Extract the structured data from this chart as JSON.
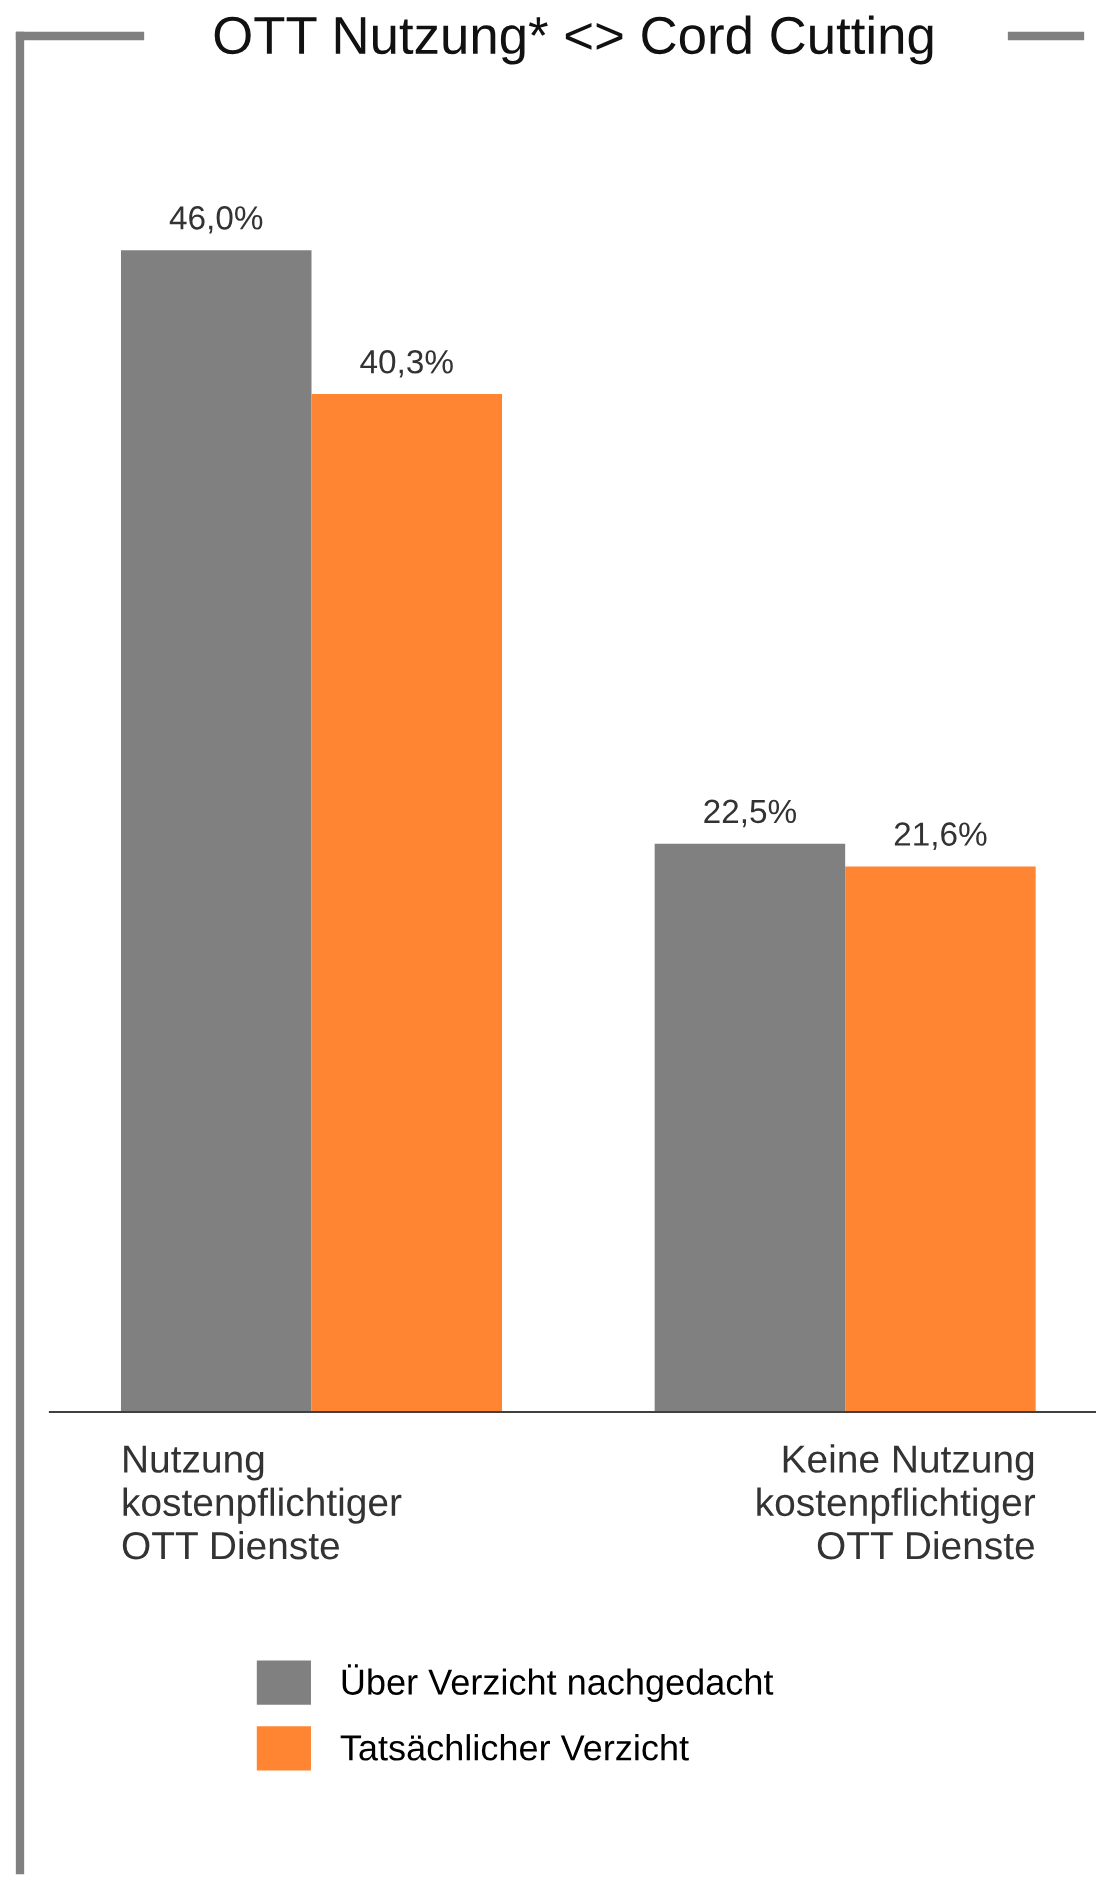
{
  "chart_data": {
    "type": "bar",
    "title": "OTT Nutzung* <> Cord Cutting",
    "categories": [
      "Nutzung\nkostenpflichtiger\nOTT Dienste",
      "Keine Nutzung\nkostenpflichtiger\nOTT Dienste"
    ],
    "series": [
      {
        "name": "Über Verzicht nachgedacht",
        "color": "#808080",
        "values": [
          46.0,
          22.5
        ],
        "value_labels": [
          "46,0%",
          "22,5%"
        ]
      },
      {
        "name": "Tatsächlicher Verzicht",
        "color": "#ff8533",
        "values": [
          40.3,
          21.6
        ],
        "value_labels": [
          "40,3%",
          "21,6%"
        ]
      }
    ],
    "legend": "bottom"
  }
}
